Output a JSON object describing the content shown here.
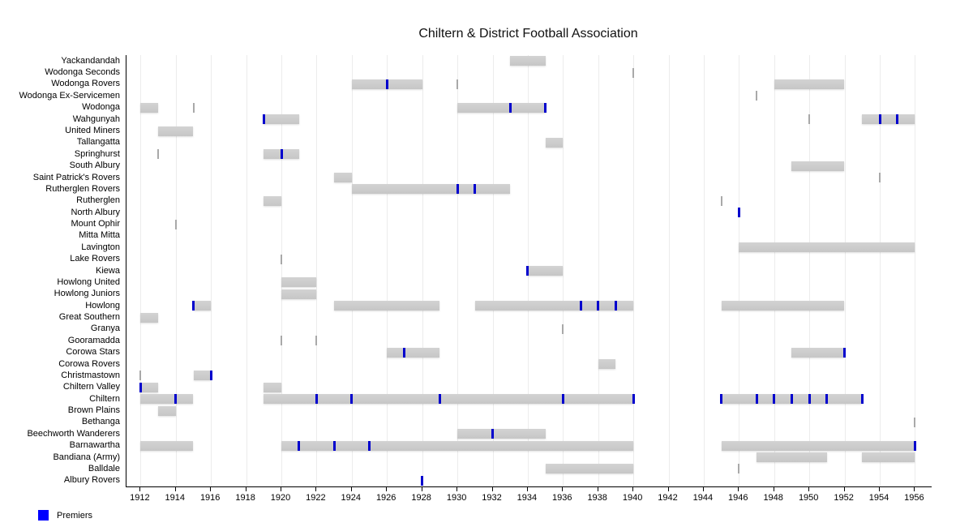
{
  "title": "Chiltern & District Football Association",
  "legend": {
    "label": "Premiers"
  },
  "colors": {
    "bar": "#cacaca",
    "single_year_mark": "#a9a9a9",
    "premier_tick": "#0000cd",
    "legend_swatch": "#0000ff",
    "gridline": "#ececec",
    "axis": "#000000"
  },
  "chart_data": {
    "type": "gantt",
    "title": "Chiltern & District Football Association",
    "legend": {
      "label": "Premiers",
      "position": "bottom-left"
    },
    "grid": "vertical, every 2 years",
    "x_axis": {
      "min": 1911.2,
      "max": 1956.95,
      "ticks": [
        1912,
        1914,
        1916,
        1918,
        1920,
        1922,
        1924,
        1926,
        1928,
        1930,
        1932,
        1934,
        1936,
        1938,
        1940,
        1942,
        1944,
        1946,
        1948,
        1950,
        1952,
        1954,
        1956
      ]
    },
    "rows": [
      {
        "name": "Yackandandah",
        "bars": [
          [
            1933,
            1935
          ]
        ]
      },
      {
        "name": "Wodonga Seconds",
        "single_year_marks": [
          1940
        ]
      },
      {
        "name": "Wodonga Rovers",
        "bars": [
          [
            1924,
            1928
          ],
          [
            1948,
            1952
          ]
        ],
        "premiers": [
          1926
        ],
        "single_year_marks": [
          1930
        ]
      },
      {
        "name": "Wodonga Ex-Servicemen",
        "single_year_marks": [
          1947
        ]
      },
      {
        "name": "Wodonga",
        "bars": [
          [
            1912,
            1913
          ],
          [
            1930,
            1935
          ]
        ],
        "premiers": [
          1933,
          1935
        ],
        "single_year_marks": [
          1915
        ]
      },
      {
        "name": "Wahgunyah",
        "bars": [
          [
            1919,
            1921
          ],
          [
            1953,
            1956
          ]
        ],
        "premiers": [
          1919,
          1954,
          1955
        ],
        "single_year_marks": [
          1950
        ]
      },
      {
        "name": "United Miners",
        "bars": [
          [
            1913,
            1915
          ]
        ]
      },
      {
        "name": "Tallangatta",
        "bars": [
          [
            1935,
            1936
          ]
        ]
      },
      {
        "name": "Springhurst",
        "bars": [
          [
            1919,
            1921
          ]
        ],
        "premiers": [
          1920
        ],
        "single_year_marks": [
          1913
        ]
      },
      {
        "name": "South Albury",
        "bars": [
          [
            1949,
            1952
          ]
        ]
      },
      {
        "name": "Saint Patrick's Rovers",
        "bars": [
          [
            1923,
            1924
          ]
        ],
        "single_year_marks": [
          1954
        ]
      },
      {
        "name": "Rutherglen Rovers",
        "bars": [
          [
            1924,
            1933
          ]
        ],
        "premiers": [
          1930,
          1931
        ]
      },
      {
        "name": "Rutherglen",
        "bars": [
          [
            1919,
            1920
          ]
        ],
        "single_year_marks": [
          1945
        ]
      },
      {
        "name": "North Albury",
        "premiers": [
          1946
        ]
      },
      {
        "name": "Mount Ophir",
        "single_year_marks": [
          1914
        ]
      },
      {
        "name": "Mitta Mitta"
      },
      {
        "name": "Lavington",
        "bars": [
          [
            1946,
            1956
          ]
        ]
      },
      {
        "name": "Lake Rovers",
        "single_year_marks": [
          1920
        ]
      },
      {
        "name": "Kiewa",
        "bars": [
          [
            1934,
            1936
          ]
        ],
        "premiers": [
          1934
        ]
      },
      {
        "name": "Howlong United",
        "bars": [
          [
            1920,
            1922
          ]
        ]
      },
      {
        "name": "Howlong Juniors",
        "bars": [
          [
            1920,
            1922
          ]
        ]
      },
      {
        "name": "Howlong",
        "bars": [
          [
            1915,
            1916
          ],
          [
            1923,
            1929
          ],
          [
            1931,
            1940
          ],
          [
            1945,
            1952
          ]
        ],
        "premiers": [
          1915,
          1937,
          1938,
          1939
        ]
      },
      {
        "name": "Great Southern",
        "bars": [
          [
            1912,
            1913
          ]
        ]
      },
      {
        "name": "Granya",
        "single_year_marks": [
          1936
        ]
      },
      {
        "name": "Gooramadda",
        "single_year_marks": [
          1920,
          1922
        ]
      },
      {
        "name": "Corowa Stars",
        "bars": [
          [
            1926,
            1929
          ],
          [
            1949,
            1952
          ]
        ],
        "premiers": [
          1927,
          1952
        ]
      },
      {
        "name": "Corowa Rovers",
        "bars": [
          [
            1938,
            1939
          ]
        ]
      },
      {
        "name": "Christmastown",
        "bars": [
          [
            1915,
            1916
          ]
        ],
        "premiers": [
          1916
        ],
        "single_year_marks": [
          1912
        ]
      },
      {
        "name": "Chiltern Valley",
        "bars": [
          [
            1912,
            1913
          ],
          [
            1919,
            1920
          ]
        ],
        "premiers": [
          1912
        ]
      },
      {
        "name": "Chiltern",
        "bars": [
          [
            1912,
            1915
          ],
          [
            1919,
            1940
          ],
          [
            1945,
            1953
          ]
        ],
        "premiers": [
          1914,
          1922,
          1924,
          1929,
          1936,
          1940,
          1945,
          1947,
          1948,
          1949,
          1950,
          1951,
          1953
        ]
      },
      {
        "name": "Brown Plains",
        "bars": [
          [
            1913,
            1914
          ]
        ]
      },
      {
        "name": "Bethanga",
        "single_year_marks": [
          1956
        ]
      },
      {
        "name": "Beechworth Wanderers",
        "bars": [
          [
            1930,
            1935
          ]
        ],
        "premiers": [
          1932
        ]
      },
      {
        "name": "Barnawartha",
        "bars": [
          [
            1912,
            1915
          ],
          [
            1920,
            1940
          ],
          [
            1945,
            1956
          ]
        ],
        "premiers": [
          1921,
          1923,
          1925,
          1956
        ]
      },
      {
        "name": "Bandiana (Army)",
        "bars": [
          [
            1947,
            1951
          ],
          [
            1953,
            1956
          ]
        ]
      },
      {
        "name": "Balldale",
        "bars": [
          [
            1935,
            1940
          ]
        ],
        "single_year_marks": [
          1946
        ]
      },
      {
        "name": "Albury Rovers",
        "premiers": [
          1928
        ]
      }
    ]
  }
}
